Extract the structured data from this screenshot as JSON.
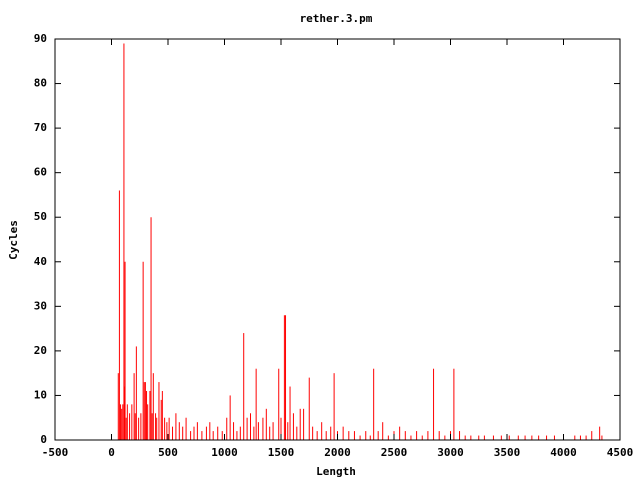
{
  "chart_data": {
    "type": "impulse",
    "title": "rether.3.pm",
    "x_label": "Length",
    "y_label": "Cycles",
    "color": "#ff0000",
    "xlim": [
      -500,
      4500
    ],
    "ylim": [
      0,
      90
    ],
    "xticks": [
      -500,
      0,
      500,
      1000,
      1500,
      2000,
      2500,
      3000,
      3500,
      4000,
      4500
    ],
    "yticks": [
      0,
      10,
      20,
      30,
      40,
      50,
      60,
      70,
      80,
      90
    ],
    "x": [
      60,
      70,
      80,
      90,
      100,
      110,
      115,
      120,
      130,
      140,
      160,
      180,
      200,
      210,
      220,
      240,
      260,
      280,
      290,
      300,
      310,
      320,
      340,
      350,
      360,
      370,
      390,
      400,
      420,
      440,
      450,
      470,
      490,
      510,
      540,
      570,
      600,
      630,
      660,
      700,
      730,
      760,
      800,
      840,
      870,
      900,
      940,
      980,
      1020,
      1050,
      1080,
      1110,
      1140,
      1170,
      1200,
      1230,
      1260,
      1280,
      1300,
      1340,
      1370,
      1400,
      1430,
      1480,
      1500,
      1530,
      1540,
      1560,
      1580,
      1610,
      1640,
      1670,
      1700,
      1750,
      1780,
      1820,
      1860,
      1900,
      1940,
      1970,
      2000,
      2050,
      2100,
      2150,
      2200,
      2250,
      2290,
      2320,
      2360,
      2400,
      2450,
      2500,
      2550,
      2600,
      2650,
      2700,
      2750,
      2800,
      2850,
      2900,
      2950,
      3000,
      3030,
      3080,
      3130,
      3180,
      3250,
      3300,
      3380,
      3450,
      3520,
      3600,
      3660,
      3720,
      3780,
      3850,
      3920,
      4000,
      4100,
      4150,
      4200,
      4250,
      4320,
      4340
    ],
    "values": [
      15,
      56,
      8,
      7,
      8,
      89,
      12,
      40,
      5,
      8,
      6,
      8,
      15,
      6,
      21,
      5,
      6,
      40,
      13,
      13,
      11,
      8,
      11,
      50,
      6,
      15,
      6,
      5,
      13,
      9,
      11,
      5,
      4,
      5,
      3,
      6,
      4,
      3,
      5,
      2,
      3,
      4,
      2,
      3,
      4,
      2,
      3,
      2,
      5,
      10,
      4,
      2,
      3,
      24,
      5,
      6,
      3,
      16,
      4,
      5,
      7,
      3,
      4,
      16,
      5,
      28,
      28,
      4,
      12,
      6,
      3,
      7,
      7,
      14,
      3,
      2,
      4,
      2,
      3,
      15,
      2,
      3,
      2,
      2,
      1,
      2,
      1,
      16,
      2,
      4,
      1,
      2,
      3,
      2,
      1,
      2,
      1,
      2,
      16,
      2,
      1,
      2,
      16,
      2,
      1,
      1,
      1,
      1,
      1,
      1,
      1,
      1,
      1,
      1,
      1,
      1,
      1,
      1,
      1,
      1,
      1,
      2,
      3,
      1
    ]
  }
}
